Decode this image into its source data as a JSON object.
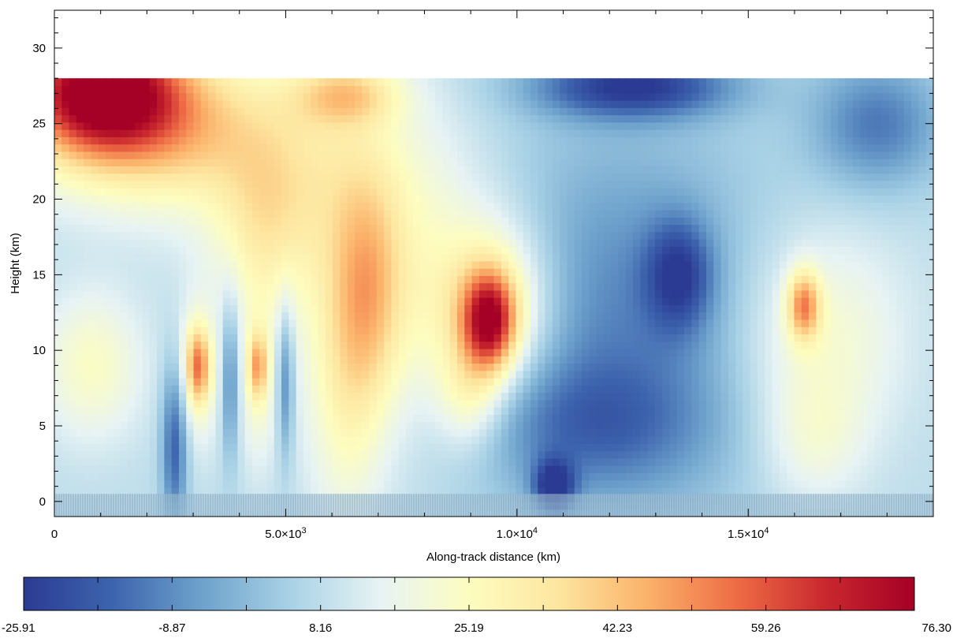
{
  "chart_data": {
    "type": "heatmap",
    "title": "",
    "xlabel": "Along-track distance (km)",
    "ylabel": "Height (km)",
    "xlim": [
      0,
      19000
    ],
    "ylim": [
      -1,
      32.5
    ],
    "data_top_height": 28,
    "x_ticks": [
      {
        "value": 0,
        "label": "0"
      },
      {
        "value": 5000,
        "label": "5.0×10",
        "exp": "3"
      },
      {
        "value": 10000,
        "label": "1.0×10",
        "exp": "4"
      },
      {
        "value": 15000,
        "label": "1.5×10",
        "exp": "4"
      }
    ],
    "y_ticks": [
      0,
      5,
      10,
      15,
      20,
      25,
      30
    ],
    "colorbar": {
      "min": -25.91,
      "max": 76.3,
      "tick_labels": [
        "-25.91",
        "-8.87",
        "8.16",
        "25.19",
        "42.23",
        "59.26",
        "76.30"
      ],
      "colors": [
        "#2b3b93",
        "#3d64ae",
        "#6ea2cc",
        "#a9d2e6",
        "#e7f3f4",
        "#fdfdc0",
        "#fde6a0",
        "#fbb26a",
        "#ee6c45",
        "#c9282e",
        "#a50026"
      ]
    },
    "background_value": 8.16,
    "features": [
      {
        "x": 1000,
        "y": 27.5,
        "value": 68,
        "sx": 1100,
        "sy": 2.6
      },
      {
        "x": 1800,
        "y": 25,
        "value": 45,
        "sx": 1800,
        "sy": 3.5
      },
      {
        "x": 5500,
        "y": 22,
        "value": 24,
        "sx": 1800,
        "sy": 5.0
      },
      {
        "x": 6300,
        "y": 27,
        "value": 32,
        "sx": 800,
        "sy": 1.5
      },
      {
        "x": 6300,
        "y": 8,
        "value": 24,
        "sx": 600,
        "sy": 7.0
      },
      {
        "x": 4500,
        "y": 18,
        "value": 22,
        "sx": 700,
        "sy": 4.0
      },
      {
        "x": 800,
        "y": 9,
        "value": 24,
        "sx": 800,
        "sy": 3.5
      },
      {
        "x": 3100,
        "y": 9,
        "value": 40,
        "sx": 180,
        "sy": 1.7
      },
      {
        "x": 3100,
        "y": 8.5,
        "value": 24,
        "sx": 350,
        "sy": 3.5
      },
      {
        "x": 4400,
        "y": 9,
        "value": 34,
        "sx": 140,
        "sy": 1.5
      },
      {
        "x": 4400,
        "y": 8,
        "value": 22,
        "sx": 280,
        "sy": 4.0
      },
      {
        "x": 9400,
        "y": 12,
        "value": 60,
        "sx": 400,
        "sy": 2.2
      },
      {
        "x": 9500,
        "y": 13,
        "value": 34,
        "sx": 900,
        "sy": 4.0
      },
      {
        "x": 9000,
        "y": 7,
        "value": 24,
        "sx": 500,
        "sy": 2.5
      },
      {
        "x": 16200,
        "y": 13,
        "value": 44,
        "sx": 250,
        "sy": 1.6
      },
      {
        "x": 16500,
        "y": 11,
        "value": 24,
        "sx": 1300,
        "sy": 5.0
      },
      {
        "x": 16400,
        "y": 4,
        "value": 18,
        "sx": 800,
        "sy": 3.0
      },
      {
        "x": 2600,
        "y": 4,
        "value": -18,
        "sx": 200,
        "sy": 4.0
      },
      {
        "x": 3800,
        "y": 8,
        "value": -12,
        "sx": 130,
        "sy": 3.5
      },
      {
        "x": 5000,
        "y": 8,
        "value": -12,
        "sx": 130,
        "sy": 3.5
      },
      {
        "x": 10800,
        "y": 1,
        "value": -24,
        "sx": 300,
        "sy": 1.2
      },
      {
        "x": 12500,
        "y": 27.5,
        "value": -24,
        "sx": 1500,
        "sy": 1.5
      },
      {
        "x": 12200,
        "y": 12,
        "value": -10,
        "sx": 2300,
        "sy": 9.0
      },
      {
        "x": 13500,
        "y": 15,
        "value": -16,
        "sx": 500,
        "sy": 2.5
      },
      {
        "x": 17800,
        "y": 25,
        "value": -12,
        "sx": 1000,
        "sy": 3.0
      },
      {
        "x": 11500,
        "y": 5,
        "value": -6,
        "sx": 1800,
        "sy": 3.0
      },
      {
        "x": 6800,
        "y": 14,
        "value": 26,
        "sx": 500,
        "sy": 5.0
      },
      {
        "x": 7500,
        "y": 14,
        "value": 23,
        "sx": 1500,
        "sy": 7.0
      }
    ]
  }
}
